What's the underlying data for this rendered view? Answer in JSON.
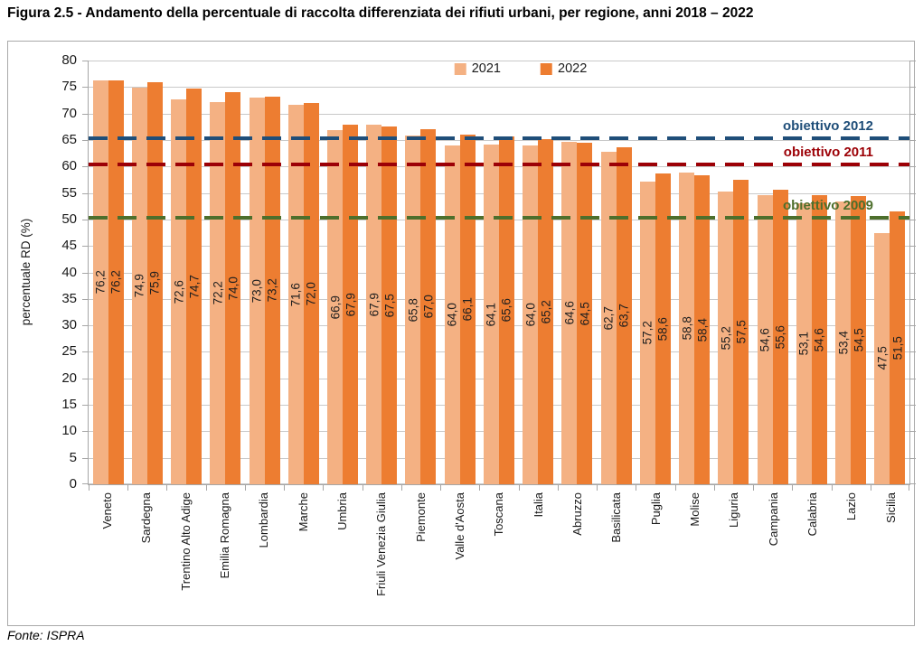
{
  "figure": {
    "title": "Figura 2.5 - Andamento della percentuale di raccolta differenziata dei rifiuti urbani, per regione, anni 2018 – 2022",
    "source": "Fonte: ISPRA"
  },
  "chart_data": {
    "type": "bar",
    "title": "",
    "xlabel": "",
    "ylabel": "percentuale RD (%)",
    "ylim": [
      0,
      80
    ],
    "ytick_step": 5,
    "grid": true,
    "legend_position": "top-center",
    "decimal_separator": ",",
    "categories": [
      "Veneto",
      "Sardegna",
      "Trentino Alto Adige",
      "Emilia Romagna",
      "Lombardia",
      "Marche",
      "Umbria",
      "Friuli Venezia Giulia",
      "Piemonte",
      "Valle d'Aosta",
      "Toscana",
      "Italia",
      "Abruzzo",
      "Basilicata",
      "Puglia",
      "Molise",
      "Liguria",
      "Campania",
      "Calabria",
      "Lazio",
      "Sicilia"
    ],
    "series": [
      {
        "name": "2021",
        "color": "#F4B183",
        "values": [
          76.2,
          74.9,
          72.6,
          72.2,
          73.0,
          71.6,
          66.9,
          67.9,
          65.8,
          64.0,
          64.1,
          64.0,
          64.6,
          62.7,
          57.2,
          58.8,
          55.2,
          54.6,
          53.1,
          53.4,
          47.5
        ],
        "labels": [
          "76,2",
          "74,9",
          "72,6",
          "72,2",
          "73,0",
          "71,6",
          "66,9",
          "67,9",
          "65,8",
          "64,0",
          "64,1",
          "64,0",
          "64,6",
          "62,7",
          "57,2",
          "58,8",
          "55,2",
          "54,6",
          "53,1",
          "53,4",
          "47,5"
        ]
      },
      {
        "name": "2022",
        "color": "#ED7D31",
        "values": [
          76.2,
          75.9,
          74.7,
          74.0,
          73.2,
          72.0,
          67.9,
          67.5,
          67.0,
          66.1,
          65.6,
          65.2,
          64.5,
          63.7,
          58.6,
          58.4,
          57.5,
          55.6,
          54.6,
          54.5,
          51.5
        ],
        "labels": [
          "76,2",
          "75,9",
          "74,7",
          "74,0",
          "73,2",
          "72,0",
          "67,9",
          "67,5",
          "67,0",
          "66,1",
          "65,6",
          "65,2",
          "64,5",
          "63,7",
          "58,6",
          "58,4",
          "57,5",
          "55,6",
          "54,6",
          "54,5",
          "51,5"
        ]
      }
    ],
    "reference_lines": [
      {
        "label": "obiettivo 2012",
        "value": 65,
        "color": "#1F4E79"
      },
      {
        "label": "obiettivo 2011",
        "value": 60,
        "color": "#9C0006"
      },
      {
        "label": "obiettivo 2009",
        "value": 50,
        "color": "#4D6F2C"
      }
    ]
  },
  "colors": {
    "gridline": "#c9c9c9",
    "axis": "#a6a6a6",
    "frame_border": "#a9a9a9"
  }
}
